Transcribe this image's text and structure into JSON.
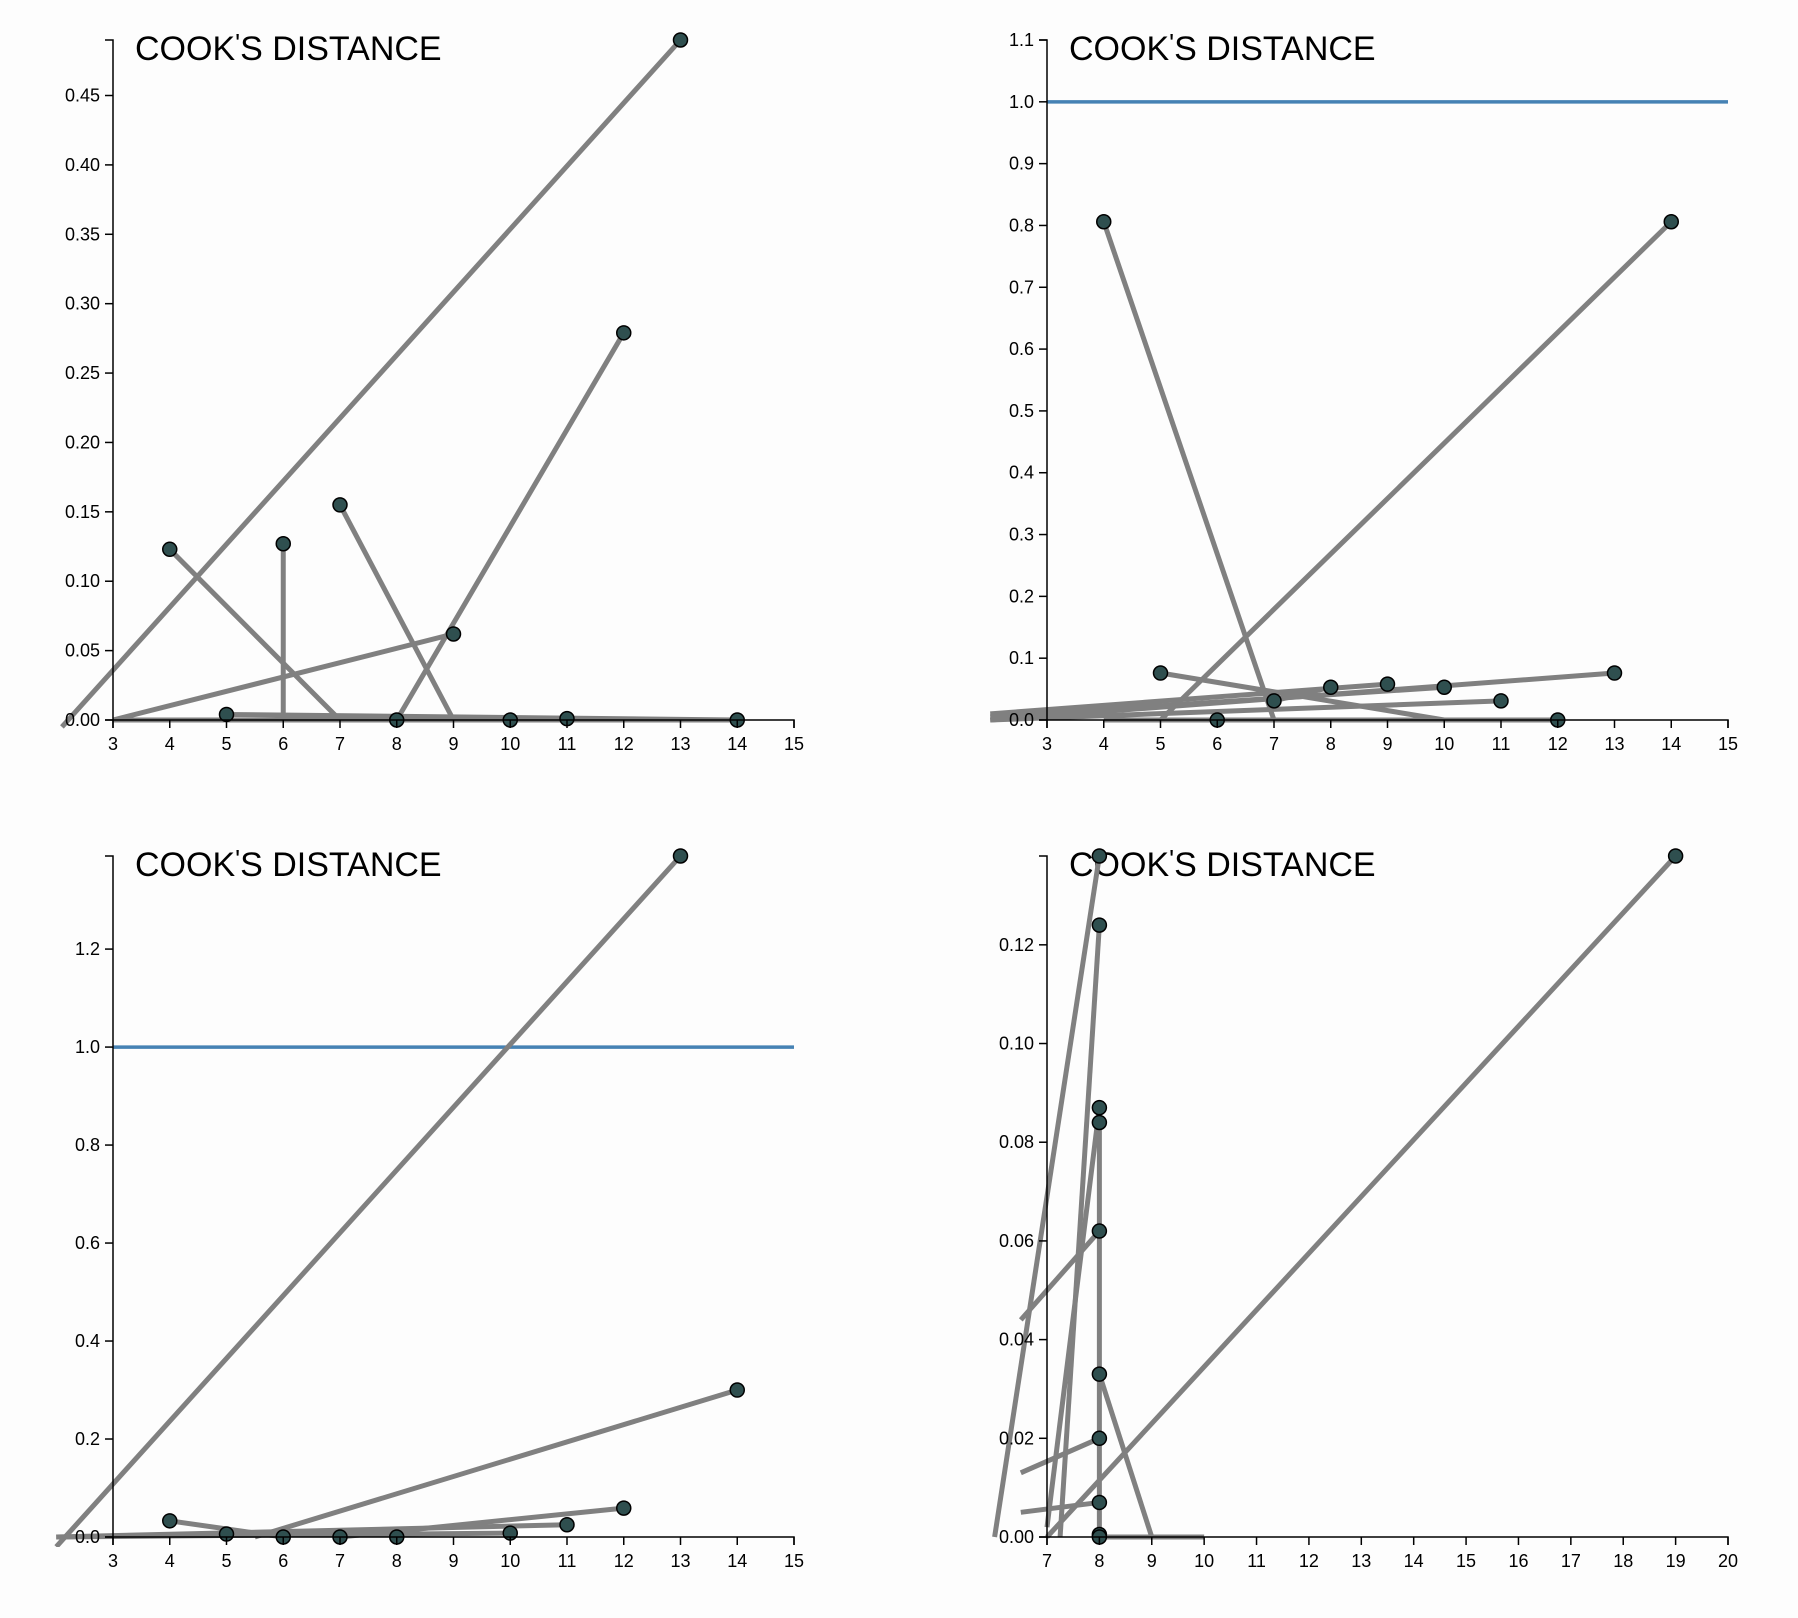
{
  "colors": {
    "segment": "#808080",
    "point": "#2f4f4f",
    "point_stroke": "#000000",
    "reference": "#4682b4",
    "axis": "#000000",
    "background": "#fdfdfd"
  },
  "chart_data": [
    {
      "type": "scatter",
      "title": "COOK'S DISTANCE",
      "title_parts": [
        "COOK",
        "'",
        "S DISTANCE"
      ],
      "xlim": [
        3,
        15
      ],
      "ylim": [
        0,
        0.49
      ],
      "xticks": [
        3,
        4,
        5,
        6,
        7,
        8,
        9,
        10,
        11,
        12,
        13,
        14,
        15
      ],
      "yticks": [
        0,
        0.05,
        0.1,
        0.15,
        0.2,
        0.25,
        0.3,
        0.35,
        0.4,
        0.45
      ],
      "ytick_labels": [
        "0.00",
        "0.05",
        "0.10",
        "0.15",
        "0.20",
        "0.25",
        "0.30",
        "0.35",
        "0.40",
        "0.45"
      ],
      "reference_line": null,
      "segments": [
        {
          "x1": 2.1,
          "y1": -0.005,
          "x2": 13,
          "y2": 0.49
        },
        {
          "x1": 4,
          "y1": 0.123,
          "x2": 7,
          "y2": 0
        },
        {
          "x1": 6,
          "y1": 0.127,
          "x2": 6,
          "y2": 0
        },
        {
          "x1": 7,
          "y1": 0.155,
          "x2": 9,
          "y2": 0
        },
        {
          "x1": 12,
          "y1": 0.279,
          "x2": 8,
          "y2": 0
        },
        {
          "x1": 3,
          "y1": 0,
          "x2": 9,
          "y2": 0.062
        },
        {
          "x1": 3,
          "y1": 0,
          "x2": 14,
          "y2": 0.0
        },
        {
          "x1": 5,
          "y1": 0.004,
          "x2": 14,
          "y2": 0.0
        }
      ],
      "points": [
        {
          "x": 13,
          "y": 0.49
        },
        {
          "x": 12,
          "y": 0.279
        },
        {
          "x": 7,
          "y": 0.155
        },
        {
          "x": 6,
          "y": 0.127
        },
        {
          "x": 4,
          "y": 0.123
        },
        {
          "x": 9,
          "y": 0.062
        },
        {
          "x": 5,
          "y": 0.004
        },
        {
          "x": 8,
          "y": 0.0
        },
        {
          "x": 10,
          "y": 0.0
        },
        {
          "x": 11,
          "y": 0.001
        },
        {
          "x": 14,
          "y": 0.0
        }
      ]
    },
    {
      "type": "scatter",
      "title": "COOK'S DISTANCE",
      "title_parts": [
        "COOK",
        "'",
        "S DISTANCE"
      ],
      "xlim": [
        3,
        15
      ],
      "ylim": [
        0,
        1.1
      ],
      "xticks": [
        3,
        4,
        5,
        6,
        7,
        8,
        9,
        10,
        11,
        12,
        13,
        14,
        15
      ],
      "yticks": [
        0,
        0.1,
        0.2,
        0.3,
        0.4,
        0.5,
        0.6,
        0.7,
        0.8,
        0.9,
        1.0,
        1.1
      ],
      "ytick_labels": [
        "0.0",
        "0.1",
        "0.2",
        "0.3",
        "0.4",
        "0.5",
        "0.6",
        "0.7",
        "0.8",
        "0.9",
        "1.0",
        "1.1"
      ],
      "reference_line": 1.0,
      "segments": [
        {
          "x1": 4,
          "y1": 0.806,
          "x2": 7,
          "y2": 0.0
        },
        {
          "x1": 14,
          "y1": 0.806,
          "x2": 5,
          "y2": 0.0
        },
        {
          "x1": 5,
          "y1": 0.076,
          "x2": 10,
          "y2": 0.0
        },
        {
          "x1": 2.0,
          "y1": 0.0,
          "x2": 13,
          "y2": 0.076
        },
        {
          "x1": 2.0,
          "y1": 0.005,
          "x2": 10,
          "y2": 0.053
        },
        {
          "x1": 2.0,
          "y1": 0.01,
          "x2": 9,
          "y2": 0.058
        },
        {
          "x1": 2.0,
          "y1": 0.0,
          "x2": 11,
          "y2": 0.031
        },
        {
          "x1": 4,
          "y1": 0.0,
          "x2": 12,
          "y2": 0.0
        },
        {
          "x1": 8,
          "y1": 0.053,
          "x2": 7,
          "y2": 0.031
        }
      ],
      "points": [
        {
          "x": 4,
          "y": 0.806
        },
        {
          "x": 14,
          "y": 0.806
        },
        {
          "x": 5,
          "y": 0.076
        },
        {
          "x": 13,
          "y": 0.076
        },
        {
          "x": 9,
          "y": 0.058
        },
        {
          "x": 8,
          "y": 0.053
        },
        {
          "x": 10,
          "y": 0.053
        },
        {
          "x": 7,
          "y": 0.031
        },
        {
          "x": 11,
          "y": 0.031
        },
        {
          "x": 6,
          "y": 0.0
        },
        {
          "x": 12,
          "y": 0.0
        }
      ]
    },
    {
      "type": "scatter",
      "title": "COOK'S DISTANCE",
      "title_parts": [
        "COOK",
        "'",
        "S DISTANCE"
      ],
      "xlim": [
        3,
        15
      ],
      "ylim": [
        0,
        1.39
      ],
      "xticks": [
        3,
        4,
        5,
        6,
        7,
        8,
        9,
        10,
        11,
        12,
        13,
        14,
        15
      ],
      "yticks": [
        0,
        0.2,
        0.4,
        0.6,
        0.8,
        1.0,
        1.2
      ],
      "ytick_labels": [
        "0.0",
        "0.2",
        "0.4",
        "0.6",
        "0.8",
        "1.0",
        "1.2"
      ],
      "reference_line": 1.0,
      "segments": [
        {
          "x1": 2.0,
          "y1": -0.02,
          "x2": 13,
          "y2": 1.39
        },
        {
          "x1": 14,
          "y1": 0.3,
          "x2": 5.5,
          "y2": 0.0
        },
        {
          "x1": 4,
          "y1": 0.033,
          "x2": 6,
          "y2": 0.0
        },
        {
          "x1": 12,
          "y1": 0.059,
          "x2": 7,
          "y2": 0.0
        },
        {
          "x1": 2.0,
          "y1": 0.0,
          "x2": 11,
          "y2": 0.025
        },
        {
          "x1": 2.0,
          "y1": 0.0,
          "x2": 10,
          "y2": 0.008
        }
      ],
      "points": [
        {
          "x": 13,
          "y": 1.39
        },
        {
          "x": 14,
          "y": 0.3
        },
        {
          "x": 12,
          "y": 0.059
        },
        {
          "x": 4,
          "y": 0.033
        },
        {
          "x": 11,
          "y": 0.025
        },
        {
          "x": 10,
          "y": 0.008
        },
        {
          "x": 5,
          "y": 0.006
        },
        {
          "x": 6,
          "y": 0.0
        },
        {
          "x": 7,
          "y": 0.0
        },
        {
          "x": 8,
          "y": 0.0
        }
      ]
    },
    {
      "type": "scatter",
      "title": "COOK'S DISTANCE",
      "title_parts": [
        "COOK",
        "'",
        "S DISTANCE"
      ],
      "xlim": [
        7,
        20
      ],
      "ylim": [
        0,
        0.138
      ],
      "xticks": [
        7,
        8,
        9,
        10,
        11,
        12,
        13,
        14,
        15,
        16,
        17,
        18,
        19,
        20
      ],
      "yticks": [
        0,
        0.02,
        0.04,
        0.06,
        0.08,
        0.1,
        0.12
      ],
      "ytick_labels": [
        "0.00",
        "0.02",
        "0.04",
        "0.06",
        "0.08",
        "0.10",
        "0.12"
      ],
      "reference_line": null,
      "segments": [
        {
          "x1": 7.0,
          "y1": 0.0,
          "x2": 19,
          "y2": 0.138
        },
        {
          "x1": 8,
          "y1": 0.138,
          "x2": 6.0,
          "y2": 0.0
        },
        {
          "x1": 8,
          "y1": 0.124,
          "x2": 7.25,
          "y2": 0.0
        },
        {
          "x1": 8,
          "y1": 0.087,
          "x2": 7.0,
          "y2": 0.002
        },
        {
          "x1": 8,
          "y1": 0.062,
          "x2": 6.5,
          "y2": 0.044
        },
        {
          "x1": 8,
          "y1": 0.084,
          "x2": 8,
          "y2": 0.0
        },
        {
          "x1": 8,
          "y1": 0.033,
          "x2": 9,
          "y2": 0.0
        },
        {
          "x1": 8,
          "y1": 0.02,
          "x2": 6.5,
          "y2": 0.013
        },
        {
          "x1": 8,
          "y1": 0.007,
          "x2": 6.5,
          "y2": 0.005
        },
        {
          "x1": 8,
          "y1": 0.0,
          "x2": 10,
          "y2": 0.0
        }
      ],
      "points": [
        {
          "x": 19,
          "y": 0.138
        },
        {
          "x": 8,
          "y": 0.138
        },
        {
          "x": 8,
          "y": 0.124
        },
        {
          "x": 8,
          "y": 0.087
        },
        {
          "x": 8,
          "y": 0.084
        },
        {
          "x": 8,
          "y": 0.062
        },
        {
          "x": 8,
          "y": 0.033
        },
        {
          "x": 8,
          "y": 0.02
        },
        {
          "x": 8,
          "y": 0.007
        },
        {
          "x": 8,
          "y": 0.0005
        },
        {
          "x": 8,
          "y": 0.0
        }
      ]
    }
  ]
}
